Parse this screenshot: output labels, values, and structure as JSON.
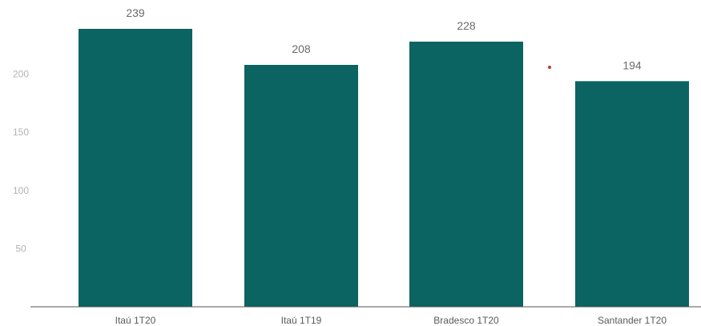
{
  "chart_data": {
    "type": "bar",
    "categories": [
      "Itaú 1T20",
      "Itaú 1T19",
      "Bradesco 1T20",
      "Santander 1T20"
    ],
    "values": [
      239,
      208,
      228,
      194
    ],
    "data_labels": [
      "239",
      "208",
      "228",
      "194"
    ],
    "yticks": [
      50,
      100,
      150,
      200
    ],
    "ytick_labels": [
      "50",
      "100",
      "150",
      "200"
    ],
    "ylim": [
      0,
      239
    ],
    "grid": false,
    "bar_color": "#0b6461",
    "axis_color": "#555555",
    "marker_color": "#c0392b"
  }
}
